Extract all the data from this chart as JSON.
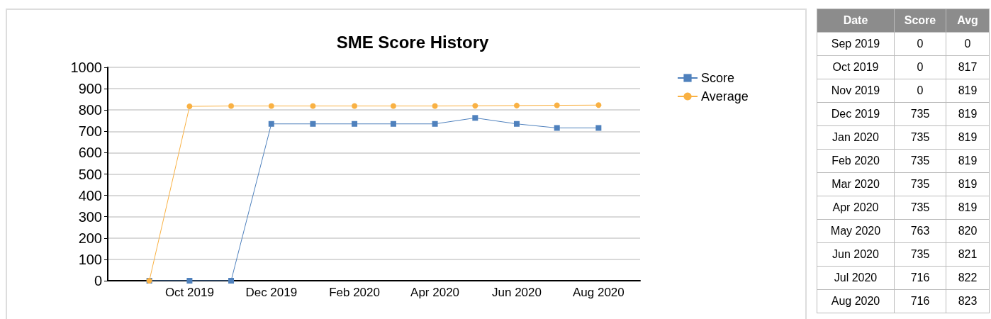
{
  "chart_data": [
    {
      "type": "line",
      "title": "SME Score History",
      "x": [
        "2019-09",
        "2019-10",
        "2019-11",
        "2019-12",
        "2020-01",
        "2020-02",
        "2020-03",
        "2020-04",
        "2020-05",
        "2020-06",
        "2020-07",
        "2020-08"
      ],
      "xlim": [
        "2019-08",
        "2020-09"
      ],
      "xticks": [
        {
          "value": "2019-10",
          "label": "Oct 2019"
        },
        {
          "value": "2019-12",
          "label": "Dec 2019"
        },
        {
          "value": "2020-02",
          "label": "Feb 2020"
        },
        {
          "value": "2020-04",
          "label": "Apr 2020"
        },
        {
          "value": "2020-06",
          "label": "Jun 2020"
        },
        {
          "value": "2020-08",
          "label": "Aug 2020"
        }
      ],
      "series": [
        {
          "name": "Score",
          "color": "#4f81bd",
          "marker": "square",
          "values": [
            0,
            0,
            0,
            735,
            735,
            735,
            735,
            735,
            763,
            735,
            716,
            716
          ]
        },
        {
          "name": "Average",
          "color": "#f9b143",
          "marker": "circle",
          "values": [
            0,
            817,
            819,
            819,
            819,
            819,
            819,
            819,
            820,
            821,
            822,
            823
          ]
        }
      ],
      "ylim": [
        0,
        1000
      ],
      "yticks": [
        0,
        100,
        200,
        300,
        400,
        500,
        600,
        700,
        800,
        900,
        1000
      ],
      "grid": "y",
      "legend": "top right"
    },
    {
      "type": "other",
      "xlabel": "Date",
      "categories": [
        "Sep 2019",
        "Oct 2019",
        "Nov 2019",
        "Dec 2019",
        "Jan 2020",
        "Feb 2020",
        "Mar 2020",
        "Apr 2020",
        "May 2020",
        "Jun 2020",
        "Jul 2020",
        "Aug 2020"
      ],
      "series": [
        {
          "name": "Score",
          "values": [
            0,
            0,
            0,
            735,
            735,
            735,
            735,
            735,
            763,
            735,
            716,
            716
          ]
        },
        {
          "name": "Avg",
          "values": [
            0,
            817,
            819,
            819,
            819,
            819,
            819,
            819,
            820,
            821,
            822,
            823
          ]
        }
      ],
      "data_labels": true
    }
  ]
}
